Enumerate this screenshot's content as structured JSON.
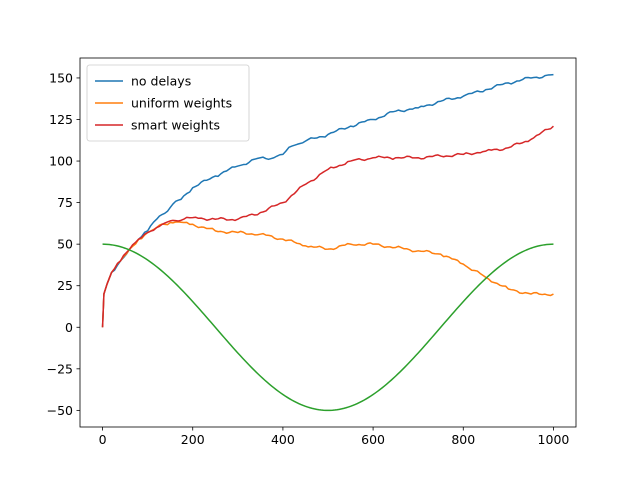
{
  "chart_data": {
    "type": "line",
    "title": "",
    "xlabel": "",
    "ylabel": "",
    "xlim": [
      -50,
      1050
    ],
    "ylim": [
      -60,
      162
    ],
    "x_ticks": [
      0,
      200,
      400,
      600,
      800,
      1000
    ],
    "y_ticks": [
      -50,
      -25,
      0,
      25,
      50,
      75,
      100,
      125,
      150
    ],
    "grid": false,
    "legend_position": "upper-left",
    "series": [
      {
        "name": "no delays",
        "color": "#1f77b4",
        "x": [
          0,
          3,
          10,
          20,
          40,
          60,
          80,
          100,
          120,
          150,
          180,
          200,
          250,
          300,
          350,
          380,
          400,
          420,
          450,
          500,
          550,
          600,
          650,
          700,
          750,
          800,
          850,
          900,
          950,
          1000
        ],
        "y": [
          0,
          20,
          26,
          33,
          40,
          47,
          53,
          58,
          65,
          72,
          79,
          84,
          91,
          97,
          102,
          102,
          104,
          109,
          112,
          116,
          121,
          125,
          130,
          132,
          136,
          139,
          143,
          147,
          150,
          152
        ]
      },
      {
        "name": "uniform weights",
        "color": "#ff7f0e",
        "x": [
          0,
          3,
          10,
          20,
          40,
          60,
          80,
          100,
          120,
          150,
          180,
          200,
          250,
          300,
          350,
          400,
          450,
          500,
          550,
          600,
          650,
          700,
          750,
          800,
          850,
          900,
          950,
          1000
        ],
        "y": [
          0,
          20,
          26,
          33,
          40,
          47,
          53,
          57,
          60,
          63,
          63,
          62,
          58,
          57,
          56,
          53,
          49,
          47,
          50,
          50,
          48,
          46,
          44,
          38,
          30,
          23,
          20,
          20
        ]
      },
      {
        "name": "smart weights",
        "color": "#d62728",
        "x": [
          0,
          3,
          10,
          20,
          40,
          60,
          80,
          100,
          120,
          150,
          180,
          200,
          250,
          300,
          350,
          400,
          450,
          500,
          550,
          600,
          650,
          700,
          750,
          800,
          850,
          900,
          950,
          1000
        ],
        "y": [
          0,
          20,
          26,
          33,
          40,
          47,
          53,
          57,
          60,
          64,
          65,
          66,
          65,
          65,
          69,
          75,
          86,
          95,
          100,
          102,
          102,
          102,
          103,
          104,
          106,
          108,
          113,
          121
        ]
      },
      {
        "name": "",
        "color": "#2ca02c",
        "function": "50*cos(2*pi*x/1000)",
        "x_range": [
          0,
          1000
        ],
        "y_range": [
          -50,
          50
        ]
      }
    ]
  }
}
